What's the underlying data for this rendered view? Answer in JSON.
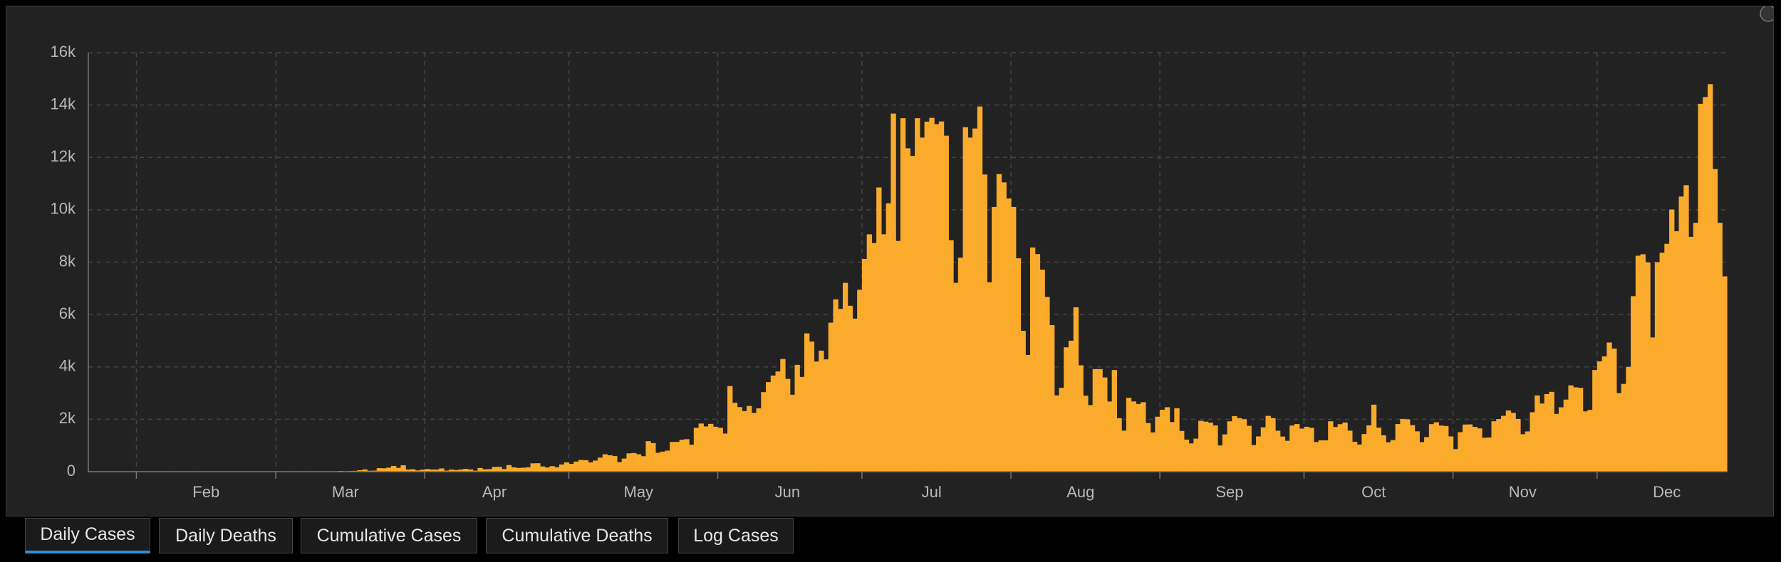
{
  "chart_data": {
    "type": "bar",
    "color": "#fbab2c",
    "grid": true,
    "ylim": [
      0,
      16000
    ],
    "yticks": [
      0,
      {
        "value": 2000,
        "label": "2k"
      },
      {
        "value": 4000,
        "label": "4k"
      },
      {
        "value": 6000,
        "label": "6k"
      },
      {
        "value": 8000,
        "label": "8k"
      },
      {
        "value": 10000,
        "label": "10k"
      },
      {
        "value": 12000,
        "label": "12k"
      },
      {
        "value": 14000,
        "label": "14k"
      },
      {
        "value": 16000,
        "label": "16k"
      }
    ],
    "categories": [
      null,
      null,
      null,
      null,
      null,
      null,
      null,
      null,
      null,
      null,
      null,
      null,
      null,
      null,
      null,
      null,
      null,
      null,
      null,
      null,
      null,
      null,
      null,
      null,
      "Feb",
      null,
      null,
      null,
      null,
      null,
      null,
      null,
      null,
      null,
      null,
      null,
      null,
      null,
      null,
      null,
      null,
      null,
      null,
      null,
      null,
      null,
      null,
      null,
      null,
      null,
      null,
      null,
      null,
      "Mar",
      null,
      null,
      null,
      null,
      null,
      null,
      null,
      null,
      null,
      null,
      null,
      null,
      null,
      null,
      null,
      null,
      null,
      null,
      null,
      null,
      null,
      null,
      null,
      null,
      null,
      null,
      null,
      null,
      null,
      null,
      "Apr",
      null,
      null,
      null,
      null,
      null,
      null,
      null,
      null,
      null,
      null,
      null,
      null,
      null,
      null,
      null,
      null,
      null,
      null,
      null,
      null,
      null,
      null,
      null,
      null,
      null,
      null,
      null,
      null,
      null,
      "May",
      null,
      null,
      null,
      null,
      null,
      null,
      null,
      null,
      null,
      null,
      null,
      null,
      null,
      null,
      null,
      null,
      null,
      null,
      null,
      null,
      null,
      null,
      null,
      null,
      null,
      null,
      null,
      null,
      null,
      null,
      "Jun",
      null,
      null,
      null,
      null,
      null,
      null,
      null,
      null,
      null,
      null,
      null,
      null,
      null,
      null,
      null,
      null,
      null,
      null,
      null,
      null,
      null,
      null,
      null,
      null,
      null,
      null,
      null,
      null,
      null,
      "Jul",
      null,
      null,
      null,
      null,
      null,
      null,
      null,
      null,
      null,
      null,
      null,
      null,
      null,
      null,
      null,
      null,
      null,
      null,
      null,
      null,
      null,
      null,
      null,
      null,
      null,
      null,
      null,
      null,
      null,
      null,
      "Aug",
      null,
      null,
      null,
      null,
      null,
      null,
      null,
      null,
      null,
      null,
      null,
      null,
      null,
      null,
      null,
      null,
      null,
      null,
      null,
      null,
      null,
      null,
      null,
      null,
      null,
      null,
      null,
      null,
      null,
      null,
      "Sep",
      null,
      null,
      null,
      null,
      null,
      null,
      null,
      null,
      null,
      null,
      null,
      null,
      null,
      null,
      null,
      null,
      null,
      null,
      null,
      null,
      null,
      null,
      null,
      null,
      null,
      null,
      null,
      null,
      null,
      "Oct",
      null,
      null,
      null,
      null,
      null,
      null,
      null,
      null,
      null,
      null,
      null,
      null,
      null,
      null,
      null,
      null,
      null,
      null,
      null,
      null,
      null,
      null,
      null,
      null,
      null,
      null,
      null,
      null,
      null,
      null,
      "Nov",
      null,
      null,
      null,
      null,
      null,
      null,
      null,
      null,
      null,
      null,
      null,
      null,
      null,
      null,
      null,
      null,
      null,
      null,
      null,
      null,
      null,
      null,
      null,
      null,
      null,
      null,
      null,
      null,
      null,
      "Dec",
      null,
      null,
      null,
      null,
      null,
      null,
      null,
      null,
      null,
      null,
      null,
      null
    ],
    "values": [
      0,
      0,
      0,
      0,
      0,
      0,
      0,
      0,
      0,
      0,
      0,
      0,
      0,
      0,
      0,
      0,
      0,
      0,
      0,
      0,
      0,
      0,
      0,
      0,
      0,
      0,
      0,
      0,
      0,
      0,
      0,
      0,
      0,
      0,
      0,
      0,
      0,
      0,
      0,
      0,
      0,
      0,
      0,
      1,
      0,
      1,
      4,
      3,
      6,
      3,
      13,
      14,
      27,
      11,
      24,
      31,
      54,
      85,
      34,
      38,
      134,
      128,
      152,
      218,
      145,
      243,
      80,
      91,
      45,
      75,
      99,
      82,
      80,
      123,
      40,
      79,
      62,
      82,
      105,
      83,
      36,
      139,
      90,
      96,
      178,
      185,
      98,
      251,
      163,
      143,
      150,
      166,
      318,
      322,
      200,
      160,
      210,
      169,
      274,
      354,
      297,
      385,
      447,
      437,
      354,
      424,
      536,
      663,
      625,
      595,
      365,
      500,
      698,
      711,
      665,
      590,
      1163,
      1089,
      722,
      765,
      803,
      1134,
      1137,
      1218,
      1240,
      1030,
      1673,
      1837,
      1727,
      1824,
      1716,
      1674,
      1455,
      3267,
      2629,
      2465,
      2313,
      2508,
      2242,
      2417,
      3036,
      3419,
      3670,
      3825,
      4302,
      3543,
      2937,
      4078,
      3617,
      5279,
      4966,
      4205,
      4621,
      4288,
      5690,
      6579,
      6215,
      7210,
      6334,
      5843,
      6945,
      8124,
      9063,
      8728,
      10853,
      9064,
      10245,
      13674,
      8810,
      13497,
      12348,
      12058,
      13497,
      12757,
      13366,
      13510,
      13271,
      13374,
      12830,
      8840,
      7211,
      8170,
      13150,
      12757,
      13103,
      13944,
      11347,
      7232,
      10107,
      11362,
      11046,
      10431,
      10107,
      8147,
      5377,
      4456,
      8559,
      8307,
      7712,
      6671,
      5595,
      2912,
      3200,
      4748,
      5000,
      6275,
      4060,
      2902,
      2541,
      3916,
      3916,
      3596,
      2678,
      3880,
      2041,
      1567,
      2819,
      2681,
      2584,
      2652,
      1858,
      1500,
      2098,
      2362,
      2460,
      1893,
      2420,
      1555,
      1223,
      1078,
      1261,
      1942,
      1911,
      1872,
      1764,
      1000,
      1423,
      1923,
      2123,
      2044,
      2001,
      1751,
      1016,
      1346,
      1692,
      2130,
      2044,
      1563,
      1340,
      1179,
      1760,
      1818,
      1643,
      1714,
      1675,
      1133,
      1195,
      1195,
      1923,
      1704,
      1813,
      1876,
      1565,
      1142,
      1036,
      1435,
      1768,
      2557,
      1681,
      1390,
      1122,
      1205,
      1820,
      2013,
      1998,
      1777,
      1539,
      1128,
      1321,
      1815,
      1884,
      1760,
      1744,
      1345,
      860,
      1508,
      1799,
      1804,
      1710,
      1652,
      1295,
      1306,
      1924,
      2010,
      2131,
      2335,
      2243,
      2011,
      1429,
      1536,
      2268,
      2909,
      2601,
      2961,
      3047,
      2206,
      2458,
      2751,
      3295,
      3220,
      3200,
      2302,
      2358,
      3880,
      4210,
      4400,
      4932,
      4700,
      3000,
      3350,
      4000,
      6700,
      8245,
      8300,
      7990,
      5125,
      8000,
      8360,
      8700,
      10008,
      9180,
      10505,
      10939,
      8967,
      9501,
      14046,
      14305,
      14796,
      11552,
      9502,
      7458
    ]
  },
  "tabs": [
    "Daily Cases",
    "Daily Deaths",
    "Cumulative Cases",
    "Cumulative Deaths",
    "Log Cases"
  ]
}
